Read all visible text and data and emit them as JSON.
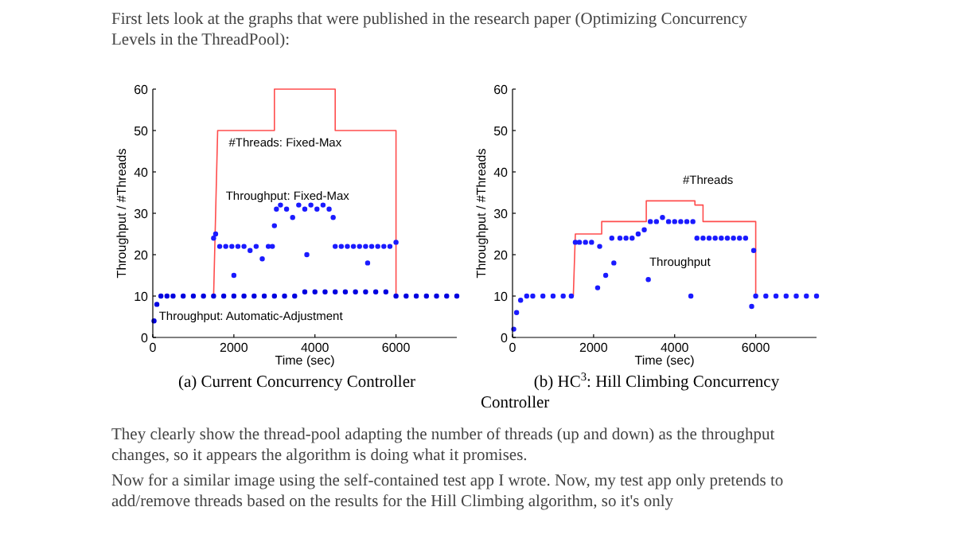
{
  "chart_data": [
    {
      "type": "other",
      "annotations": [
        "First lets look at the graphs that were published in the research paper (Optimizing Concurrency Levels in the ThreadPool):"
      ]
    },
    {
      "type": "line",
      "xlabel": "Time (sec)",
      "ylabel": "Throughput / #Threads",
      "xlim": [
        0,
        7500
      ],
      "ylim": [
        0,
        60
      ],
      "xticks": [
        0,
        2000,
        4000,
        6000
      ],
      "yticks": [
        0,
        10,
        20,
        30,
        40,
        50,
        60
      ],
      "series": [
        {
          "type": "line",
          "name": "#Threads: Fixed-Max",
          "color": "#ff4d4d",
          "x": [
            1500,
            1600,
            3000,
            3000,
            4500,
            4500,
            6000,
            6000
          ],
          "values": [
            10,
            50,
            50,
            60,
            60,
            50,
            50,
            10
          ]
        },
        {
          "type": "scatter",
          "name": "Throughput: Fixed-Max",
          "color": "#1a1aff",
          "x": [
            1500,
            1550,
            1650,
            1800,
            1950,
            2000,
            2100,
            2250,
            2400,
            2550,
            2700,
            2850,
            2950,
            3000,
            3050,
            3150,
            3300,
            3450,
            3600,
            3750,
            3800,
            3900,
            4050,
            4200,
            4350,
            4450,
            4500,
            4650,
            4800,
            4950,
            5100,
            5250,
            5300,
            5400,
            5550,
            5700,
            5850,
            6000
          ],
          "values": [
            24,
            25,
            22,
            22,
            22,
            15,
            22,
            22,
            21,
            22,
            19,
            22,
            22,
            27,
            31,
            32,
            31,
            29,
            32,
            31,
            20,
            32,
            31,
            32,
            31,
            29,
            22,
            22,
            22,
            22,
            22,
            22,
            18,
            22,
            22,
            22,
            22,
            23
          ]
        },
        {
          "type": "scatter",
          "name": "Throughput: Automatic-Adjustment",
          "color": "#0000e0",
          "x": [
            30,
            100,
            200,
            350,
            500,
            750,
            1000,
            1250,
            1500,
            1750,
            2000,
            2250,
            2500,
            2750,
            3000,
            3250,
            3500,
            3750,
            4000,
            4250,
            4500,
            4750,
            5000,
            5250,
            5500,
            5750,
            6000,
            6250,
            6500,
            6750,
            7000,
            7250,
            7500
          ],
          "values": [
            4,
            8,
            10,
            10,
            10,
            10,
            10,
            10,
            10,
            10,
            10,
            10,
            10,
            10,
            10,
            10,
            10,
            11,
            11,
            11,
            11,
            11,
            11,
            11,
            11,
            11,
            10,
            10,
            10,
            10,
            10,
            10,
            10
          ]
        }
      ],
      "annotations": [
        "(a) Current Concurrency Controller"
      ]
    },
    {
      "type": "line",
      "xlabel": "Time (sec)",
      "ylabel": "Throughput / #Threads",
      "xlim": [
        0,
        7500
      ],
      "ylim": [
        0,
        60
      ],
      "xticks": [
        0,
        2000,
        4000,
        6000
      ],
      "yticks": [
        0,
        10,
        20,
        30,
        40,
        50,
        60
      ],
      "series": [
        {
          "type": "line",
          "name": "#Threads",
          "color": "#ff4d4d",
          "x": [
            1500,
            1550,
            2200,
            2200,
            3300,
            3300,
            4500,
            4500,
            4700,
            4700,
            6000,
            6000
          ],
          "values": [
            10,
            25,
            25,
            28,
            28,
            33,
            33,
            32,
            32,
            28,
            28,
            10
          ]
        },
        {
          "type": "scatter",
          "name": "Throughput",
          "color": "#1a1aff",
          "x": [
            30,
            100,
            200,
            350,
            500,
            750,
            1000,
            1250,
            1450,
            1550,
            1650,
            1800,
            1950,
            2100,
            2150,
            2300,
            2450,
            2500,
            2650,
            2800,
            2950,
            3100,
            3250,
            3350,
            3400,
            3550,
            3700,
            3850,
            4000,
            4150,
            4300,
            4400,
            4450,
            4550,
            4700,
            4850,
            5000,
            5150,
            5300,
            5450,
            5600,
            5750,
            5900,
            5950,
            6000,
            6250,
            6500,
            6750,
            7000,
            7250,
            7500
          ],
          "values": [
            2,
            6,
            9,
            10,
            10,
            10,
            10,
            10,
            10,
            23,
            23,
            23,
            23,
            12,
            22,
            15,
            24,
            18,
            24,
            24,
            24,
            25,
            26,
            14,
            28,
            28,
            29,
            28,
            28,
            28,
            28,
            10,
            28,
            24,
            24,
            24,
            24,
            24,
            24,
            24,
            24,
            24,
            7.5,
            21,
            10,
            10,
            10,
            10,
            10,
            10,
            10
          ]
        }
      ],
      "annotations": [
        "(b) HC$^{3}$: Hill Climbing Concurrency Controller"
      ]
    },
    {
      "type": "other",
      "annotations": [
        "They clearly show the thread-pool adapting the number of threads (up and down) as the throughput changes, so it appears the algorithm is doing what it promises.",
        "Now for a similar image using the self-contained test app I wrote. Now, my test app only pretends to add/remove threads based on the results for the Hill Climbing algorithm, so it's only"
      ]
    }
  ]
}
